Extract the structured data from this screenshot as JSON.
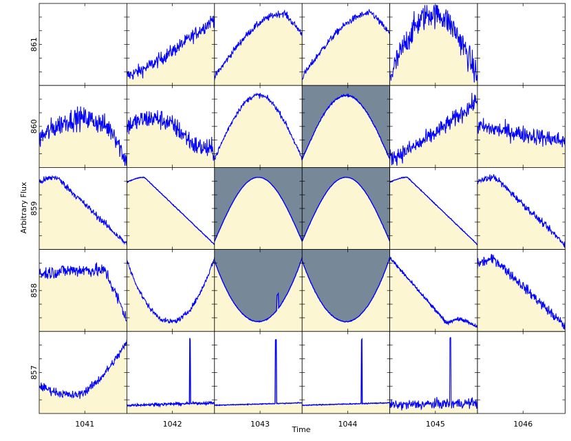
{
  "chart_data": {
    "type": "line",
    "xlabel": "Time",
    "ylabel": "Arbitrary Flux",
    "grid": false,
    "columns": [
      "1041",
      "1042",
      "1043",
      "1044",
      "1045",
      "1046"
    ],
    "rows": [
      "861",
      "860",
      "859",
      "858",
      "857"
    ],
    "colors": {
      "line": "#0000ff",
      "fill": "#fdf6d3",
      "highlight": "#778899",
      "frame": "#000000"
    },
    "panels": [
      {
        "row": "861",
        "column": "1041",
        "shape": "empty",
        "noise": 0,
        "highlight": false
      },
      {
        "row": "861",
        "column": "1042",
        "shape": "rise",
        "noise": 0.08,
        "highlight": false
      },
      {
        "row": "861",
        "column": "1043",
        "shape": "rise-peak-late",
        "noise": 0.04,
        "highlight": false
      },
      {
        "row": "861",
        "column": "1044",
        "shape": "rise-peak-late",
        "noise": 0.04,
        "highlight": false
      },
      {
        "row": "861",
        "column": "1045",
        "shape": "arch",
        "noise": 0.16,
        "highlight": false
      },
      {
        "row": "861",
        "column": "1046",
        "shape": "empty",
        "noise": 0,
        "highlight": false
      },
      {
        "row": "860",
        "column": "1041",
        "shape": "noisy-arch",
        "noise": 0.13,
        "highlight": false
      },
      {
        "row": "860",
        "column": "1042",
        "shape": "arch-early",
        "noise": 0.12,
        "highlight": false
      },
      {
        "row": "860",
        "column": "1043",
        "shape": "arch",
        "noise": 0.03,
        "highlight": false
      },
      {
        "row": "860",
        "column": "1044",
        "shape": "arch",
        "noise": 0.01,
        "highlight": true
      },
      {
        "row": "860",
        "column": "1045",
        "shape": "rise",
        "noise": 0.1,
        "highlight": false
      },
      {
        "row": "860",
        "column": "1046",
        "shape": "flat-declining",
        "noise": 0.1,
        "highlight": false
      },
      {
        "row": "859",
        "column": "1041",
        "shape": "decline",
        "noise": 0.04,
        "highlight": false
      },
      {
        "row": "859",
        "column": "1042",
        "shape": "decline",
        "noise": 0.005,
        "highlight": false
      },
      {
        "row": "859",
        "column": "1043",
        "shape": "arch",
        "noise": 0.003,
        "highlight": true
      },
      {
        "row": "859",
        "column": "1044",
        "shape": "arch",
        "noise": 0.003,
        "highlight": true
      },
      {
        "row": "859",
        "column": "1045",
        "shape": "decline",
        "noise": 0.005,
        "highlight": false
      },
      {
        "row": "859",
        "column": "1046",
        "shape": "decline",
        "noise": 0.04,
        "highlight": false
      },
      {
        "row": "858",
        "column": "1041",
        "shape": "arch-drop",
        "noise": 0.08,
        "highlight": false
      },
      {
        "row": "858",
        "column": "1042",
        "shape": "dip",
        "noise": 0.03,
        "highlight": false
      },
      {
        "row": "858",
        "column": "1043",
        "shape": "dip",
        "noise": 0.005,
        "highlight": true
      },
      {
        "row": "858",
        "column": "1044",
        "shape": "dip",
        "noise": 0.005,
        "highlight": true
      },
      {
        "row": "858",
        "column": "1045",
        "shape": "dip-early",
        "noise": 0.02,
        "highlight": false
      },
      {
        "row": "858",
        "column": "1046",
        "shape": "decline",
        "noise": 0.06,
        "highlight": false
      },
      {
        "row": "857",
        "column": "1041",
        "shape": "dip-rise",
        "noise": 0.05,
        "highlight": false
      },
      {
        "row": "857",
        "column": "1042",
        "shape": "flat-spike",
        "noise": 0.015,
        "highlight": false
      },
      {
        "row": "857",
        "column": "1043",
        "shape": "flat-spike",
        "noise": 0.005,
        "highlight": false
      },
      {
        "row": "857",
        "column": "1044",
        "shape": "flat-spike",
        "noise": 0.005,
        "highlight": false
      },
      {
        "row": "857",
        "column": "1045",
        "shape": "flat-spike",
        "noise": 0.06,
        "highlight": false
      },
      {
        "row": "857",
        "column": "1046",
        "shape": "empty",
        "noise": 0,
        "highlight": false
      }
    ]
  }
}
